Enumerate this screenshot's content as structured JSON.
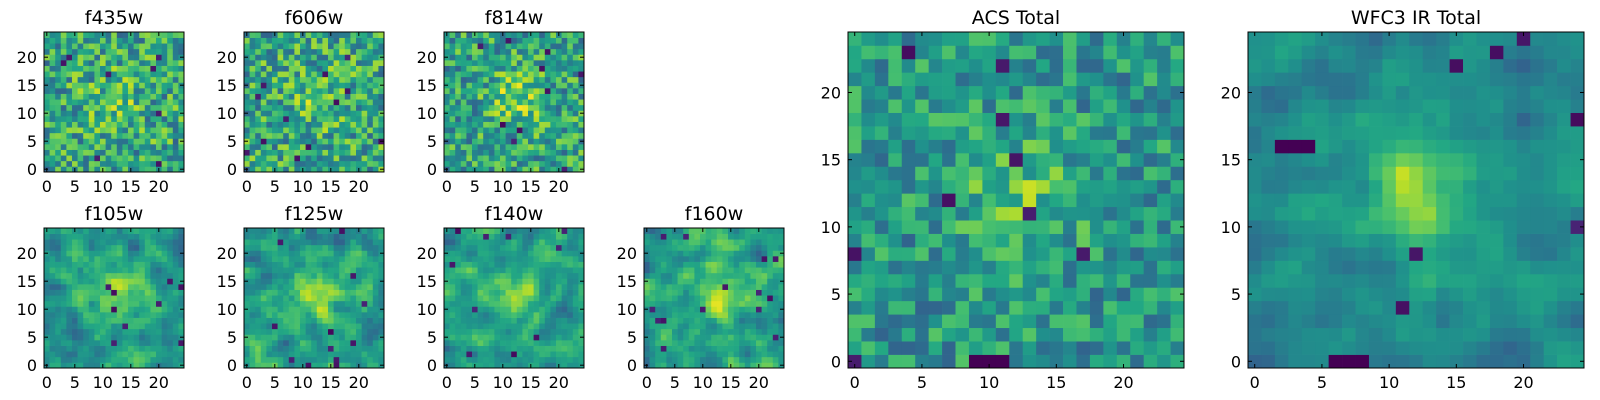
{
  "figure": {
    "description_free": true
  },
  "chart_data": [
    {
      "type": "heatmap",
      "title": "f435w",
      "grid_size": 25,
      "xlim": [
        -0.5,
        24.5
      ],
      "ylim": [
        -0.5,
        24.5
      ],
      "xticks": [
        0,
        5,
        10,
        15,
        20
      ],
      "yticks": [
        0,
        5,
        10,
        15,
        20
      ],
      "colormap": "viridis",
      "seed": 11,
      "peak": 0.25,
      "noise": 1.0,
      "holes": 8,
      "blocks": 0,
      "smooth": 0
    },
    {
      "type": "heatmap",
      "title": "f606w",
      "grid_size": 25,
      "xlim": [
        -0.5,
        24.5
      ],
      "ylim": [
        -0.5,
        24.5
      ],
      "xticks": [
        0,
        5,
        10,
        15,
        20
      ],
      "yticks": [
        0,
        5,
        10,
        15,
        20
      ],
      "colormap": "viridis",
      "seed": 23,
      "peak": 0.3,
      "noise": 1.0,
      "holes": 12,
      "blocks": 0,
      "smooth": 0
    },
    {
      "type": "heatmap",
      "title": "f814w",
      "grid_size": 25,
      "xlim": [
        -0.5,
        24.5
      ],
      "ylim": [
        -0.5,
        24.5
      ],
      "xticks": [
        0,
        5,
        10,
        15,
        20
      ],
      "yticks": [
        0,
        5,
        10,
        15,
        20
      ],
      "colormap": "viridis",
      "seed": 37,
      "peak": 0.45,
      "noise": 0.95,
      "holes": 10,
      "blocks": 0,
      "smooth": 0
    },
    {
      "type": "heatmap",
      "title": "f105w",
      "grid_size": 25,
      "xlim": [
        -0.5,
        24.5
      ],
      "ylim": [
        -0.5,
        24.5
      ],
      "xticks": [
        0,
        5,
        10,
        15,
        20
      ],
      "yticks": [
        0,
        5,
        10,
        15,
        20
      ],
      "colormap": "viridis",
      "seed": 41,
      "peak": 0.55,
      "noise": 0.8,
      "holes": 9,
      "blocks": 0,
      "smooth": 1
    },
    {
      "type": "heatmap",
      "title": "f125w",
      "grid_size": 25,
      "xlim": [
        -0.5,
        24.5
      ],
      "ylim": [
        -0.5,
        24.5
      ],
      "xticks": [
        0,
        5,
        10,
        15,
        20
      ],
      "yticks": [
        0,
        5,
        10,
        15,
        20
      ],
      "colormap": "viridis",
      "seed": 53,
      "peak": 0.5,
      "noise": 0.85,
      "holes": 12,
      "blocks": 0,
      "smooth": 1
    },
    {
      "type": "heatmap",
      "title": "f140w",
      "grid_size": 25,
      "xlim": [
        -0.5,
        24.5
      ],
      "ylim": [
        -0.5,
        24.5
      ],
      "xticks": [
        0,
        5,
        10,
        15,
        20
      ],
      "yticks": [
        0,
        5,
        10,
        15,
        20
      ],
      "colormap": "viridis",
      "seed": 67,
      "peak": 0.55,
      "noise": 0.85,
      "holes": 10,
      "blocks": 0,
      "smooth": 1
    },
    {
      "type": "heatmap",
      "title": "f160w",
      "grid_size": 25,
      "xlim": [
        -0.5,
        24.5
      ],
      "ylim": [
        -0.5,
        24.5
      ],
      "xticks": [
        0,
        5,
        10,
        15,
        20
      ],
      "yticks": [
        0,
        5,
        10,
        15,
        20
      ],
      "colormap": "viridis",
      "seed": 79,
      "peak": 0.6,
      "noise": 0.85,
      "holes": 14,
      "blocks": 0,
      "smooth": 1
    },
    {
      "type": "heatmap",
      "title": "ACS Total",
      "grid_size": 25,
      "xlim": [
        -0.5,
        24.5
      ],
      "ylim": [
        -0.5,
        24.5
      ],
      "xticks": [
        0,
        5,
        10,
        15,
        20
      ],
      "yticks": [
        0,
        5,
        10,
        15,
        20
      ],
      "colormap": "viridis",
      "seed": 97,
      "peak": 0.35,
      "noise": 0.75,
      "holes": 9,
      "blocks": 1,
      "smooth": 0
    },
    {
      "type": "heatmap",
      "title": "WFC3 IR Total",
      "grid_size": 25,
      "xlim": [
        -0.5,
        24.5
      ],
      "ylim": [
        -0.5,
        24.5
      ],
      "xticks": [
        0,
        5,
        10,
        15,
        20
      ],
      "yticks": [
        0,
        5,
        10,
        15,
        20
      ],
      "colormap": "viridis",
      "seed": 131,
      "peak": 0.6,
      "noise": 0.6,
      "holes": 7,
      "blocks": 2,
      "smooth": 1
    }
  ]
}
